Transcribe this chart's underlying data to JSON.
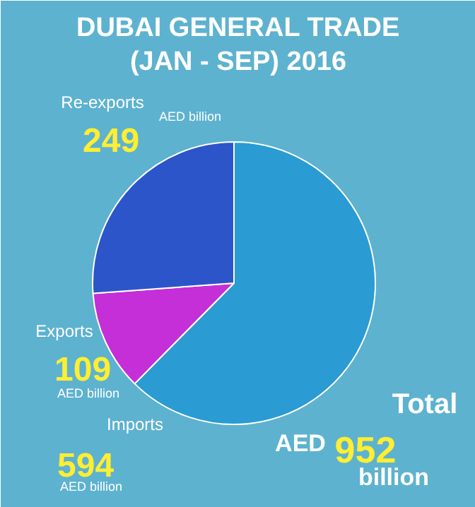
{
  "chart_data": {
    "type": "pie",
    "title": "DUBAI GENERAL TRADE\n(JAN - SEP) 2016",
    "categories": [
      "Imports",
      "Exports",
      "Re-exports"
    ],
    "values": [
      594,
      109,
      249
    ],
    "colors": [
      "#2a9bd3",
      "#c42fd8",
      "#2c55c9"
    ],
    "data_labels": true,
    "annotations": [
      "AED billion",
      "AED billion",
      "AED billion",
      "Total",
      "AED",
      "952",
      "billion"
    ]
  }
}
